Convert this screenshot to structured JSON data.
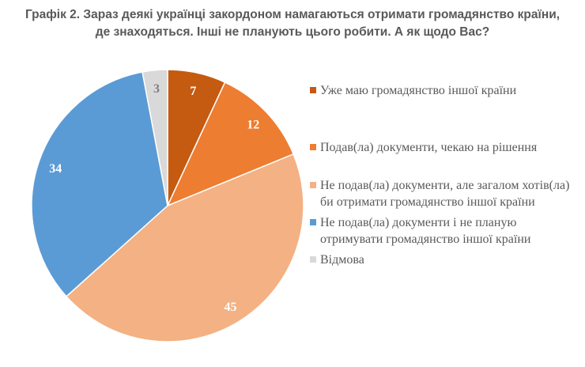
{
  "chart_data": {
    "type": "pie",
    "title_lines": [
      "Графік 2. Зараз деякі українці закордоном намагаються отримати громадянство країни,",
      "де знаходяться. Інші не планують цього робити. А як щодо Вас?"
    ],
    "legend_position": "right",
    "slices": [
      {
        "label": "Уже маю громадянство іншої країни",
        "value": 7,
        "color": "#C55A11",
        "label_color": "#FFFFFF"
      },
      {
        "label": "Подав(ла) документи, чекаю на рішення",
        "value": 12,
        "color": "#ED7D31",
        "label_color": "#FFFFFF"
      },
      {
        "label": "Не подав(ла) документи, але загалом хотів(ла) би отримати громадянство іншої країни",
        "value": 45,
        "color": "#F4B183",
        "label_color": "#FFFFFF"
      },
      {
        "label": "Не подав(ла) документи і не планую отримувати громадянство іншої країни",
        "value": 34,
        "color": "#5B9BD5",
        "label_color": "#FFFFFF"
      },
      {
        "label": "Відмова",
        "value": 3,
        "color": "#D9D9D9",
        "label_color": "#7F7F7F"
      }
    ]
  }
}
